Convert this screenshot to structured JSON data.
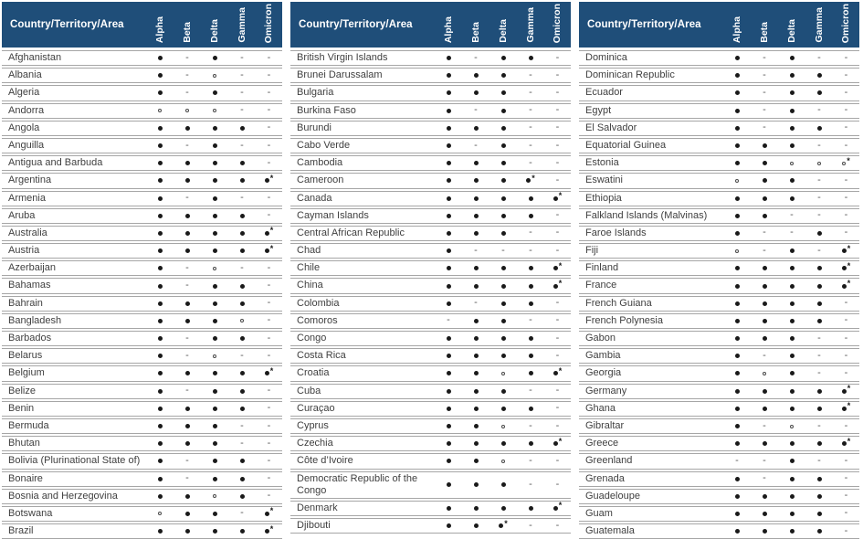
{
  "header": {
    "country_column_label": "Country/Territory/Area",
    "variant_columns": [
      "Alpha",
      "Beta",
      "Delta",
      "Gamma",
      "Omicron"
    ]
  },
  "colors": {
    "header_bg": "#1F4E79",
    "header_text": "#FFFFFF",
    "row_border": "#A6A6A6",
    "text": "#3F3F3F",
    "mark": "#1A1A1A"
  },
  "symbols_legend": {
    "filled_dot": "●",
    "open_circle": "○",
    "dash": "-",
    "asterisk": "*"
  },
  "tables": [
    {
      "rows": [
        {
          "country": "Afghanistan",
          "marks": [
            "●",
            "-",
            "●",
            "-",
            "-"
          ]
        },
        {
          "country": "Albania",
          "marks": [
            "●",
            "-",
            "○",
            "-",
            "-"
          ]
        },
        {
          "country": "Algeria",
          "marks": [
            "●",
            "-",
            "●",
            "-",
            "-"
          ]
        },
        {
          "country": "Andorra",
          "marks": [
            "○",
            "○",
            "○",
            "-",
            "-"
          ]
        },
        {
          "country": "Angola",
          "marks": [
            "●",
            "●",
            "●",
            "●",
            "-"
          ]
        },
        {
          "country": "Anguilla",
          "marks": [
            "●",
            "-",
            "●",
            "-",
            "-"
          ]
        },
        {
          "country": "Antigua and Barbuda",
          "marks": [
            "●",
            "●",
            "●",
            "●",
            "-"
          ]
        },
        {
          "country": "Argentina",
          "marks": [
            "●",
            "●",
            "●",
            "●",
            "●*"
          ]
        },
        {
          "country": "Armenia",
          "marks": [
            "●",
            "-",
            "●",
            "-",
            "-"
          ]
        },
        {
          "country": "Aruba",
          "marks": [
            "●",
            "●",
            "●",
            "●",
            "-"
          ]
        },
        {
          "country": "Australia",
          "marks": [
            "●",
            "●",
            "●",
            "●",
            "●*"
          ]
        },
        {
          "country": "Austria",
          "marks": [
            "●",
            "●",
            "●",
            "●",
            "●*"
          ]
        },
        {
          "country": "Azerbaijan",
          "marks": [
            "●",
            "-",
            "○",
            "-",
            "-"
          ]
        },
        {
          "country": "Bahamas",
          "marks": [
            "●",
            "-",
            "●",
            "●",
            "-"
          ]
        },
        {
          "country": "Bahrain",
          "marks": [
            "●",
            "●",
            "●",
            "●",
            "-"
          ]
        },
        {
          "country": "Bangladesh",
          "marks": [
            "●",
            "●",
            "●",
            "○",
            "-"
          ]
        },
        {
          "country": "Barbados",
          "marks": [
            "●",
            "-",
            "●",
            "●",
            "-"
          ]
        },
        {
          "country": "Belarus",
          "marks": [
            "●",
            "-",
            "○",
            "-",
            "-"
          ]
        },
        {
          "country": "Belgium",
          "marks": [
            "●",
            "●",
            "●",
            "●",
            "●*"
          ]
        },
        {
          "country": "Belize",
          "marks": [
            "●",
            "-",
            "●",
            "●",
            "-"
          ]
        },
        {
          "country": "Benin",
          "marks": [
            "●",
            "●",
            "●",
            "●",
            "-"
          ]
        },
        {
          "country": "Bermuda",
          "marks": [
            "●",
            "●",
            "●",
            "-",
            "-"
          ]
        },
        {
          "country": "Bhutan",
          "marks": [
            "●",
            "●",
            "●",
            "-",
            "-"
          ]
        },
        {
          "country": "Bolivia (Plurinational State of)",
          "marks": [
            "●",
            "-",
            "●",
            "●",
            "-"
          ]
        },
        {
          "country": "Bonaire",
          "marks": [
            "●",
            "-",
            "●",
            "●",
            "-"
          ]
        },
        {
          "country": "Bosnia and Herzegovina",
          "marks": [
            "●",
            "●",
            "○",
            "●",
            "-"
          ]
        },
        {
          "country": "Botswana",
          "marks": [
            "○",
            "●",
            "●",
            "-",
            "●*"
          ]
        },
        {
          "country": "Brazil",
          "marks": [
            "●",
            "●",
            "●",
            "●",
            "●*"
          ]
        }
      ]
    },
    {
      "rows": [
        {
          "country": "British Virgin Islands",
          "marks": [
            "●",
            "-",
            "●",
            "●",
            "-"
          ]
        },
        {
          "country": "Brunei Darussalam",
          "marks": [
            "●",
            "●",
            "●",
            "-",
            "-"
          ]
        },
        {
          "country": "Bulgaria",
          "marks": [
            "●",
            "●",
            "●",
            "-",
            "-"
          ]
        },
        {
          "country": "Burkina Faso",
          "marks": [
            "●",
            "-",
            "●",
            "-",
            "-"
          ]
        },
        {
          "country": "Burundi",
          "marks": [
            "●",
            "●",
            "●",
            "-",
            "-"
          ]
        },
        {
          "country": "Cabo Verde",
          "marks": [
            "●",
            "-",
            "●",
            "-",
            "-"
          ]
        },
        {
          "country": "Cambodia",
          "marks": [
            "●",
            "●",
            "●",
            "-",
            "-"
          ]
        },
        {
          "country": "Cameroon",
          "marks": [
            "●",
            "●",
            "●",
            "●*",
            "-"
          ]
        },
        {
          "country": "Canada",
          "marks": [
            "●",
            "●",
            "●",
            "●",
            "●*"
          ]
        },
        {
          "country": "Cayman Islands",
          "marks": [
            "●",
            "●",
            "●",
            "●",
            "-"
          ]
        },
        {
          "country": "Central African Republic",
          "marks": [
            "●",
            "●",
            "●",
            "-",
            "-"
          ]
        },
        {
          "country": "Chad",
          "marks": [
            "●",
            "-",
            "-",
            "-",
            "-"
          ]
        },
        {
          "country": "Chile",
          "marks": [
            "●",
            "●",
            "●",
            "●",
            "●*"
          ]
        },
        {
          "country": "China",
          "marks": [
            "●",
            "●",
            "●",
            "●",
            "●*"
          ]
        },
        {
          "country": "Colombia",
          "marks": [
            "●",
            "-",
            "●",
            "●",
            "-"
          ]
        },
        {
          "country": "Comoros",
          "marks": [
            "-",
            "●",
            "●",
            "-",
            "-"
          ]
        },
        {
          "country": "Congo",
          "marks": [
            "●",
            "●",
            "●",
            "●",
            "-"
          ]
        },
        {
          "country": "Costa Rica",
          "marks": [
            "●",
            "●",
            "●",
            "●",
            "-"
          ]
        },
        {
          "country": "Croatia",
          "marks": [
            "●",
            "●",
            "○",
            "●",
            "●*"
          ]
        },
        {
          "country": "Cuba",
          "marks": [
            "●",
            "●",
            "●",
            "-",
            "-"
          ]
        },
        {
          "country": "Curaçao",
          "marks": [
            "●",
            "●",
            "●",
            "●",
            "-"
          ]
        },
        {
          "country": "Cyprus",
          "marks": [
            "●",
            "●",
            "○",
            "-",
            "-"
          ]
        },
        {
          "country": "Czechia",
          "marks": [
            "●",
            "●",
            "●",
            "●",
            "●*"
          ]
        },
        {
          "country": "Côte d’Ivoire",
          "marks": [
            "●",
            "●",
            "○",
            "-",
            "-"
          ]
        },
        {
          "country": "Democratic Republic of the Congo",
          "marks": [
            "●",
            "●",
            "●",
            "-",
            "-"
          ]
        },
        {
          "country": "Denmark",
          "marks": [
            "●",
            "●",
            "●",
            "●",
            "●*"
          ]
        },
        {
          "country": "Djibouti",
          "marks": [
            "●",
            "●",
            "●*",
            "-",
            "-"
          ]
        }
      ]
    },
    {
      "rows": [
        {
          "country": "Dominica",
          "marks": [
            "●",
            "-",
            "●",
            "-",
            "-"
          ]
        },
        {
          "country": "Dominican Republic",
          "marks": [
            "●",
            "-",
            "●",
            "●",
            "-"
          ]
        },
        {
          "country": "Ecuador",
          "marks": [
            "●",
            "-",
            "●",
            "●",
            "-"
          ]
        },
        {
          "country": "Egypt",
          "marks": [
            "●",
            "-",
            "●",
            "-",
            "-"
          ]
        },
        {
          "country": "El Salvador",
          "marks": [
            "●",
            "-",
            "●",
            "●",
            "-"
          ]
        },
        {
          "country": "Equatorial Guinea",
          "marks": [
            "●",
            "●",
            "●",
            "-",
            "-"
          ]
        },
        {
          "country": "Estonia",
          "marks": [
            "●",
            "●",
            "○",
            "○",
            "○*"
          ]
        },
        {
          "country": "Eswatini",
          "marks": [
            "○",
            "●",
            "●",
            "-",
            "-"
          ]
        },
        {
          "country": "Ethiopia",
          "marks": [
            "●",
            "●",
            "●",
            "-",
            "-"
          ]
        },
        {
          "country": "Falkland Islands (Malvinas)",
          "marks": [
            "●",
            "●",
            "-",
            "-",
            "-"
          ]
        },
        {
          "country": "Faroe Islands",
          "marks": [
            "●",
            "-",
            "-",
            "●",
            "-"
          ]
        },
        {
          "country": "Fiji",
          "marks": [
            "○",
            "-",
            "●",
            "-",
            "●*"
          ]
        },
        {
          "country": "Finland",
          "marks": [
            "●",
            "●",
            "●",
            "●",
            "●*"
          ]
        },
        {
          "country": "France",
          "marks": [
            "●",
            "●",
            "●",
            "●",
            "●*"
          ]
        },
        {
          "country": "French Guiana",
          "marks": [
            "●",
            "●",
            "●",
            "●",
            "-"
          ]
        },
        {
          "country": "French Polynesia",
          "marks": [
            "●",
            "●",
            "●",
            "●",
            "-"
          ]
        },
        {
          "country": "Gabon",
          "marks": [
            "●",
            "●",
            "●",
            "-",
            "-"
          ]
        },
        {
          "country": "Gambia",
          "marks": [
            "●",
            "-",
            "●",
            "-",
            "-"
          ]
        },
        {
          "country": "Georgia",
          "marks": [
            "●",
            "○",
            "●",
            "-",
            "-"
          ]
        },
        {
          "country": "Germany",
          "marks": [
            "●",
            "●",
            "●",
            "●",
            "●*"
          ]
        },
        {
          "country": "Ghana",
          "marks": [
            "●",
            "●",
            "●",
            "●",
            "●*"
          ]
        },
        {
          "country": "Gibraltar",
          "marks": [
            "●",
            "-",
            "○",
            "-",
            "-"
          ]
        },
        {
          "country": "Greece",
          "marks": [
            "●",
            "●",
            "●",
            "●",
            "●*"
          ]
        },
        {
          "country": "Greenland",
          "marks": [
            "-",
            "-",
            "●",
            "-",
            "-"
          ]
        },
        {
          "country": "Grenada",
          "marks": [
            "●",
            "-",
            "●",
            "●",
            "-"
          ]
        },
        {
          "country": "Guadeloupe",
          "marks": [
            "●",
            "●",
            "●",
            "●",
            "-"
          ]
        },
        {
          "country": "Guam",
          "marks": [
            "●",
            "●",
            "●",
            "●",
            "-"
          ]
        },
        {
          "country": "Guatemala",
          "marks": [
            "●",
            "●",
            "●",
            "●",
            "-"
          ]
        }
      ]
    }
  ]
}
